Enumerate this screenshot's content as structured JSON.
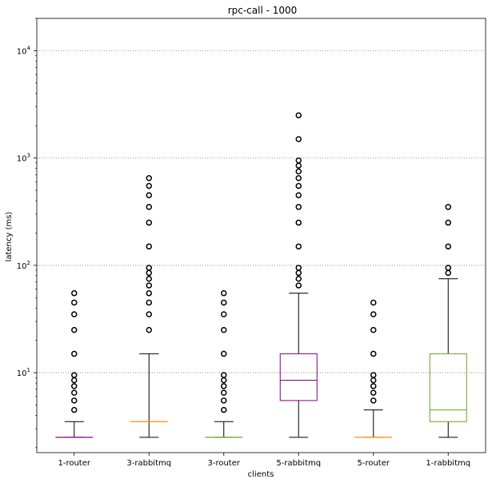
{
  "chart_data": {
    "type": "box",
    "title": "rpc-call - 1000",
    "xlabel": "clients",
    "ylabel": "latency (ms)",
    "yscale": "log",
    "ylim": [
      1.8,
      20000
    ],
    "grid": "y-major-dotted",
    "y_ticks": [
      {
        "value": 10,
        "base": "10",
        "exp": "1"
      },
      {
        "value": 100,
        "base": "10",
        "exp": "2"
      },
      {
        "value": 1000,
        "base": "10",
        "exp": "3"
      },
      {
        "value": 10000,
        "base": "10",
        "exp": "4"
      }
    ],
    "categories": [
      "1-router",
      "3-rabbitmq",
      "3-router",
      "5-rabbitmq",
      "5-router",
      "1-rabbitmq"
    ],
    "series": [
      {
        "name": "1-router",
        "color": "#800080",
        "whisker_low": 2.5,
        "q1": 2.5,
        "median": 2.5,
        "q3": 2.5,
        "whisker_high": 3.5,
        "fliers": [
          4.5,
          5.5,
          6.5,
          7.5,
          8.5,
          9.5,
          15,
          25,
          35,
          45,
          55
        ]
      },
      {
        "name": "3-rabbitmq",
        "color": "#ff8c00",
        "whisker_low": 2.5,
        "q1": 3.5,
        "median": 3.5,
        "q3": 3.5,
        "whisker_high": 15,
        "fliers": [
          25,
          35,
          45,
          55,
          65,
          75,
          85,
          95,
          150,
          250,
          350,
          450,
          550,
          650
        ]
      },
      {
        "name": "3-router",
        "color": "#6aa121",
        "whisker_low": 2.5,
        "q1": 2.5,
        "median": 2.5,
        "q3": 2.5,
        "whisker_high": 3.5,
        "fliers": [
          4.5,
          5.5,
          6.5,
          7.5,
          8.5,
          9.5,
          15,
          25,
          35,
          45,
          55
        ]
      },
      {
        "name": "5-rabbitmq",
        "color": "#800080",
        "whisker_low": 2.5,
        "q1": 5.5,
        "median": 8.5,
        "q3": 15,
        "whisker_high": 55,
        "fliers": [
          65,
          75,
          85,
          95,
          150,
          250,
          350,
          450,
          550,
          650,
          750,
          850,
          950,
          1500,
          2500
        ]
      },
      {
        "name": "5-router",
        "color": "#ff8c00",
        "whisker_low": 2.5,
        "q1": 2.5,
        "median": 2.5,
        "q3": 2.5,
        "whisker_high": 4.5,
        "fliers": [
          5.5,
          6.5,
          7.5,
          8.5,
          9.5,
          15,
          25,
          35,
          45
        ]
      },
      {
        "name": "1-rabbitmq",
        "color": "#6aa121",
        "whisker_low": 2.5,
        "q1": 3.5,
        "median": 4.5,
        "q3": 15,
        "whisker_high": 75,
        "fliers": [
          85,
          95,
          150,
          250,
          350
        ]
      }
    ]
  }
}
